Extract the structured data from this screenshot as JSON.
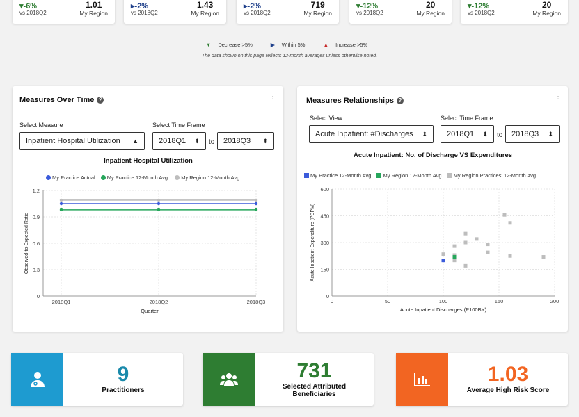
{
  "kpis": [
    {
      "change": "-6%",
      "dir": "down",
      "vs": "vs 2018Q2",
      "region_value": "1.01",
      "region_label": "My Region"
    },
    {
      "change": "-2%",
      "dir": "within",
      "vs": "vs 2018Q2",
      "region_value": "1.43",
      "region_label": "My Region"
    },
    {
      "change": "-2%",
      "dir": "within",
      "vs": "vs 2018Q2",
      "region_value": "719",
      "region_label": "My Region"
    },
    {
      "change": "-12%",
      "dir": "down",
      "vs": "vs 2018Q2",
      "region_value": "20",
      "region_label": "My Region"
    },
    {
      "change": "-12%",
      "dir": "down",
      "vs": "vs 2018Q2",
      "region_value": "20",
      "region_label": "My Region"
    }
  ],
  "legend": {
    "decrease": "Decrease >5%",
    "within": "Within 5%",
    "increase": "Increase >5%"
  },
  "note": "The data shown on this page reflects 12-month averages unless otherwise noted.",
  "left_panel": {
    "title": "Measures Over Time",
    "measure_label": "Select Measure",
    "measure_value": "Inpatient Hospital Utilization",
    "timeframe_label": "Select Time Frame",
    "from": "2018Q1",
    "to_word": "to",
    "to": "2018Q3",
    "chart_title": "Inpatient Hospital Utilization",
    "legend": [
      {
        "name": "My Practice Actual",
        "color": "#3b5bdb"
      },
      {
        "name": "My Practice 12-Month Avg.",
        "color": "#26a65b"
      },
      {
        "name": "My Region 12-Month Avg.",
        "color": "#bdbdbd"
      }
    ]
  },
  "right_panel": {
    "title": "Measures  Relationships",
    "view_label": "Select View",
    "view_value": "Acute Inpatient: #Discharges",
    "timeframe_label": "Select Time Frame",
    "from": "2018Q1",
    "to_word": "to",
    "to": "2018Q3",
    "chart_title": "Acute Inpatient: No. of Discharge VS Expenditures",
    "legend": [
      {
        "name": "My Practice 12-Month Avg.",
        "color": "#3b5bdb"
      },
      {
        "name": "My Region 12-Month Avg.",
        "color": "#26a65b"
      },
      {
        "name": "My Region Practices' 12-Month Avg.",
        "color": "#bdbdbd"
      }
    ]
  },
  "chart_data": [
    {
      "type": "line",
      "title": "Inpatient Hospital Utilization",
      "xlabel": "Quarter",
      "ylabel": "Observed-to-Expected Ratio",
      "categories": [
        "2018Q1",
        "2018Q2",
        "2018Q3"
      ],
      "ylim": [
        0,
        1.2
      ],
      "yticks": [
        "0",
        "0.3",
        "0.6",
        "0.9",
        "1.2"
      ],
      "series": [
        {
          "name": "My Practice Actual",
          "color": "#3b5bdb",
          "values": [
            1.05,
            1.05,
            1.05
          ]
        },
        {
          "name": "My Practice 12-Month Avg.",
          "color": "#26a65b",
          "values": [
            0.98,
            0.98,
            0.98
          ]
        },
        {
          "name": "My Region 12-Month Avg.",
          "color": "#bdbdbd",
          "values": [
            1.09,
            1.09,
            1.09
          ]
        }
      ]
    },
    {
      "type": "scatter",
      "title": "Acute Inpatient: No. of Discharge VS Expenditures",
      "xlabel": "Acute Inpatient Discharges (P100BY)",
      "ylabel": "Acute Inpatient Expenditure (PBPM)",
      "xlim": [
        0,
        200
      ],
      "ylim": [
        0,
        600
      ],
      "xticks": [
        "0",
        "50",
        "100",
        "150",
        "200"
      ],
      "yticks": [
        "0",
        "150",
        "300",
        "450",
        "600"
      ],
      "series": [
        {
          "name": "My Practice 12-Month Avg.",
          "color": "#3b5bdb",
          "points": [
            [
              100,
              200
            ]
          ]
        },
        {
          "name": "My Region 12-Month Avg.",
          "color": "#26a65b",
          "points": [
            [
              110,
              220
            ]
          ]
        },
        {
          "name": "My Region Practices' 12-Month Avg.",
          "color": "#bdbdbd",
          "points": [
            [
              100,
              235
            ],
            [
              110,
              200
            ],
            [
              110,
              230
            ],
            [
              110,
              280
            ],
            [
              120,
              170
            ],
            [
              120,
              300
            ],
            [
              120,
              350
            ],
            [
              130,
              320
            ],
            [
              140,
              290
            ],
            [
              140,
              245
            ],
            [
              155,
              455
            ],
            [
              160,
              410
            ],
            [
              160,
              225
            ],
            [
              190,
              220
            ]
          ]
        }
      ]
    }
  ],
  "summary": [
    {
      "value": "9",
      "label": "Practitioners",
      "color": "#1e9bd0",
      "num_color": "#1a8aab",
      "icon": "doctor-icon"
    },
    {
      "value": "731",
      "label": "Selected Attributed Beneficiaries",
      "color": "#2e7d32",
      "num_color": "#2e7d32",
      "icon": "users-icon"
    },
    {
      "value": "1.03",
      "label": "Average High Risk Score",
      "color": "#f26522",
      "num_color": "#f26522",
      "icon": "bar-chart-icon"
    }
  ]
}
